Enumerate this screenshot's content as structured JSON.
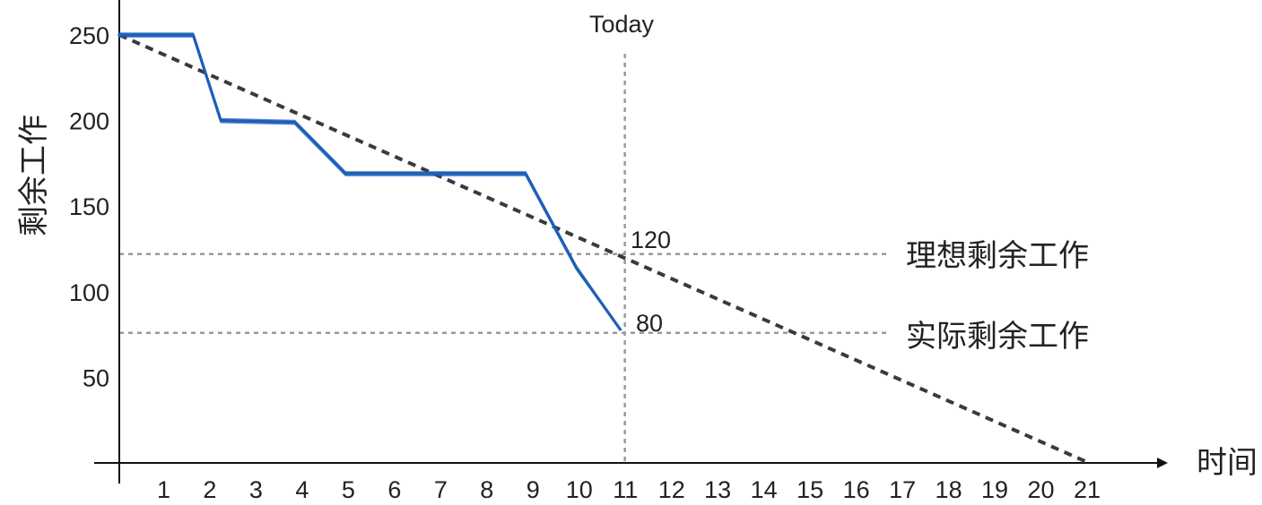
{
  "chart_data": {
    "type": "line",
    "ylabel": "剩余工作",
    "xlabel": "时间",
    "x": [
      1,
      2,
      3,
      4,
      5,
      6,
      7,
      8,
      9,
      10,
      11,
      12,
      13,
      14,
      15,
      16,
      17,
      18,
      19,
      20,
      21
    ],
    "xlim": [
      0,
      22.2
    ],
    "ylim": [
      0,
      250
    ],
    "yticks": [
      50,
      100,
      150,
      200,
      250
    ],
    "series": [
      {
        "name": "理想剩余工作",
        "style": "dashed",
        "color": "#3a3a3e",
        "points": [
          [
            0,
            250
          ],
          [
            21,
            0
          ]
        ]
      },
      {
        "name": "实际剩余工作",
        "style": "solid",
        "color": "#1f5fb8",
        "points": [
          [
            0,
            250
          ],
          [
            1.6,
            250
          ],
          [
            2.2,
            200
          ],
          [
            3.8,
            199
          ],
          [
            4.9,
            169
          ],
          [
            8.8,
            169
          ],
          [
            9.9,
            114
          ],
          [
            10.85,
            78
          ]
        ]
      }
    ],
    "today": {
      "label": "Today",
      "x": 10.95
    },
    "reference_lines": [
      {
        "label": "120",
        "y": 122,
        "color": "#555555"
      },
      {
        "label": "80",
        "y": 76,
        "color": "#555555"
      }
    ],
    "legend_labels": [
      {
        "text": "理想剩余工作",
        "color": "#3a3a3e"
      },
      {
        "text": "实际剩余工作",
        "color": "#1f5fb8"
      }
    ]
  }
}
